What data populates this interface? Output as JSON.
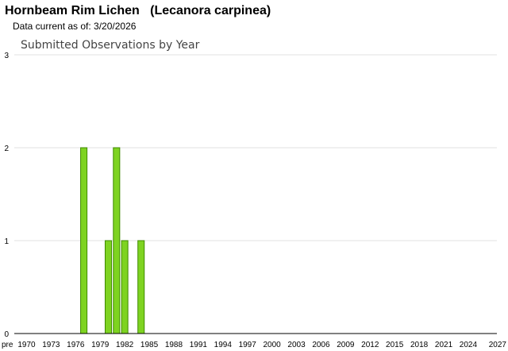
{
  "header": {
    "title": "Hornbeam Rim Lichen   (Lecanora carpinea)",
    "data_current": "Data current as of: 3/20/2026"
  },
  "chart_data": {
    "type": "bar",
    "title": "Submitted Observations by Year",
    "xlabel": "",
    "ylabel": "",
    "ylim": [
      0,
      3
    ],
    "yticks": [
      0,
      1,
      2,
      3
    ],
    "grid": true,
    "legend": "none",
    "bar_color": "#7ed321",
    "bar_edge_color": "#3f8a00",
    "x_tick_labels": [
      "pre",
      "1970",
      "1973",
      "1976",
      "1979",
      "1982",
      "1985",
      "1988",
      "1991",
      "1994",
      "1997",
      "2000",
      "2003",
      "2006",
      "2009",
      "2012",
      "2015",
      "2018",
      "2021",
      "2024",
      "2027"
    ],
    "x": [
      "pre",
      1970,
      1971,
      1972,
      1973,
      1974,
      1975,
      1976,
      1977,
      1978,
      1979,
      1980,
      1981,
      1982,
      1983,
      1984,
      1985,
      1986,
      1987,
      1988,
      1989,
      1990,
      1991,
      1992,
      1993,
      1994,
      1995,
      1996,
      1997,
      1998,
      1999,
      2000,
      2001,
      2002,
      2003,
      2004,
      2005,
      2006,
      2007,
      2008,
      2009,
      2010,
      2011,
      2012,
      2013,
      2014,
      2015,
      2016,
      2017,
      2018,
      2019,
      2020,
      2021,
      2022,
      2023,
      2024,
      2025,
      2026,
      2027
    ],
    "values": [
      0,
      0,
      0,
      0,
      0,
      0,
      0,
      0,
      2,
      0,
      0,
      1,
      2,
      1,
      0,
      1,
      0,
      0,
      0,
      0,
      0,
      0,
      0,
      0,
      0,
      0,
      0,
      0,
      0,
      0,
      0,
      0,
      0,
      0,
      0,
      0,
      0,
      0,
      0,
      0,
      0,
      0,
      0,
      0,
      0,
      0,
      0,
      0,
      0,
      0,
      0,
      0,
      0,
      0,
      0,
      0,
      0,
      0,
      0
    ]
  }
}
